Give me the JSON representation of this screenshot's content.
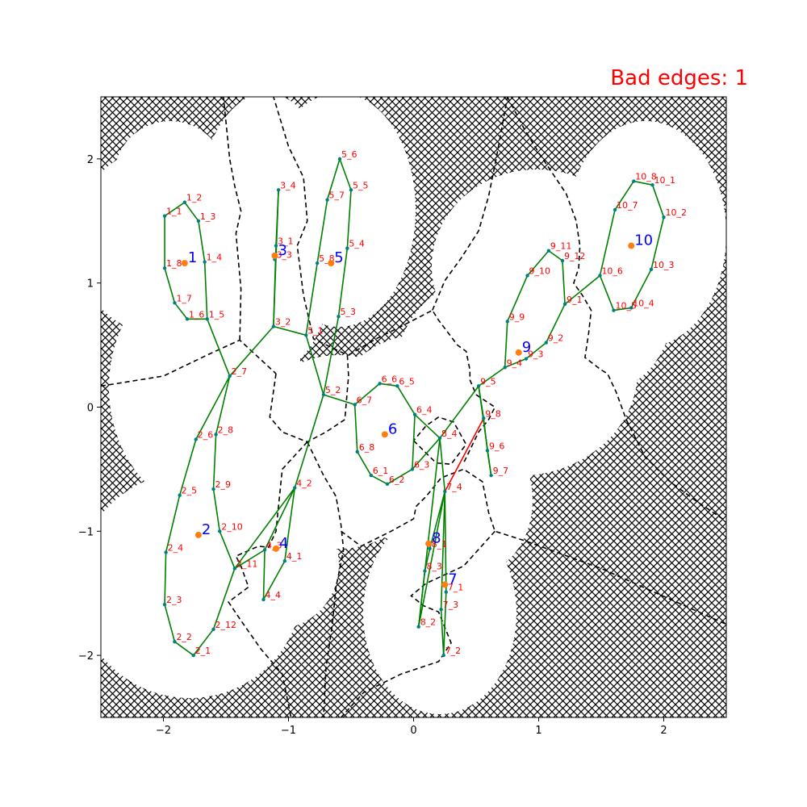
{
  "title": "Bad edges: 1",
  "colors": {
    "title": "#ff0000",
    "good_edge": "#008000",
    "bad_edge": "#ff0000",
    "boundary": "#000000",
    "obstacle_hatch": "#000000",
    "free_space": "#ffffff",
    "node_dot": "#008080",
    "node_label": "#ff0000",
    "centroid_dot": "#ff7f0e",
    "centroid_label": "#0000ff"
  },
  "chart_data": {
    "type": "scatter",
    "title": "Bad edges: 1",
    "xlim": [
      -2.5,
      2.5
    ],
    "ylim": [
      -2.5,
      2.5
    ],
    "xticks": [
      -2,
      -1,
      0,
      1,
      2
    ],
    "yticks": [
      -2,
      -1,
      0,
      1,
      2
    ],
    "xtick_labels": [
      "−2",
      "−1",
      "0",
      "1",
      "2"
    ],
    "ytick_labels": [
      "−2",
      "−1",
      "0",
      "1",
      "2"
    ],
    "grid": false,
    "legend": "none",
    "clusters": [
      {
        "label": "1",
        "centroid": [
          -1.83,
          1.16
        ]
      },
      {
        "label": "2",
        "centroid": [
          -1.72,
          -1.03
        ]
      },
      {
        "label": "3",
        "centroid": [
          -1.11,
          1.22
        ]
      },
      {
        "label": "4",
        "centroid": [
          -1.1,
          -1.14
        ]
      },
      {
        "label": "5",
        "centroid": [
          -0.66,
          1.16
        ]
      },
      {
        "label": "6",
        "centroid": [
          -0.23,
          -0.22
        ]
      },
      {
        "label": "7",
        "centroid": [
          0.25,
          -1.43
        ]
      },
      {
        "label": "8",
        "centroid": [
          0.12,
          -1.1
        ]
      },
      {
        "label": "9",
        "centroid": [
          0.84,
          0.44
        ]
      },
      {
        "label": "10",
        "centroid": [
          1.74,
          1.3
        ]
      }
    ],
    "nodes": [
      {
        "label": "1_1",
        "x": -1.99,
        "y": 1.54
      },
      {
        "label": "1_2",
        "x": -1.83,
        "y": 1.65
      },
      {
        "label": "1_3",
        "x": -1.72,
        "y": 1.5
      },
      {
        "label": "1_4",
        "x": -1.67,
        "y": 1.17
      },
      {
        "label": "1_5",
        "x": -1.65,
        "y": 0.71
      },
      {
        "label": "1_6",
        "x": -1.81,
        "y": 0.71
      },
      {
        "label": "1_7",
        "x": -1.91,
        "y": 0.84
      },
      {
        "label": "1_8",
        "x": -1.99,
        "y": 1.12
      },
      {
        "label": "2_1",
        "x": -1.76,
        "y": -2.0
      },
      {
        "label": "2_2",
        "x": -1.91,
        "y": -1.89
      },
      {
        "label": "2_3",
        "x": -1.99,
        "y": -1.59
      },
      {
        "label": "2_4",
        "x": -1.98,
        "y": -1.17
      },
      {
        "label": "2_5",
        "x": -1.87,
        "y": -0.71
      },
      {
        "label": "2_6",
        "x": -1.74,
        "y": -0.26
      },
      {
        "label": "2_7",
        "x": -1.47,
        "y": 0.25
      },
      {
        "label": "2_8",
        "x": -1.58,
        "y": -0.22
      },
      {
        "label": "2_9",
        "x": -1.6,
        "y": -0.66
      },
      {
        "label": "2_10",
        "x": -1.55,
        "y": -1.0
      },
      {
        "label": "2_11",
        "x": -1.43,
        "y": -1.3
      },
      {
        "label": "2_12",
        "x": -1.6,
        "y": -1.79
      },
      {
        "label": "3_1",
        "x": -1.1,
        "y": 1.3
      },
      {
        "label": "3_2",
        "x": -1.12,
        "y": 0.65
      },
      {
        "label": "3_3",
        "x": -1.11,
        "y": 1.19
      },
      {
        "label": "3_4",
        "x": -1.08,
        "y": 1.75
      },
      {
        "label": "4_1",
        "x": -1.03,
        "y": -1.24
      },
      {
        "label": "4_2",
        "x": -0.95,
        "y": -0.65
      },
      {
        "label": "4_3",
        "x": -1.19,
        "y": -1.15
      },
      {
        "label": "4_4",
        "x": -1.2,
        "y": -1.55
      },
      {
        "label": "5_1",
        "x": -0.86,
        "y": 0.58
      },
      {
        "label": "5_2",
        "x": -0.72,
        "y": 0.1
      },
      {
        "label": "5_3",
        "x": -0.6,
        "y": 0.73
      },
      {
        "label": "5_4",
        "x": -0.53,
        "y": 1.28
      },
      {
        "label": "5_5",
        "x": -0.5,
        "y": 1.75
      },
      {
        "label": "5_6",
        "x": -0.59,
        "y": 2.0
      },
      {
        "label": "5_7",
        "x": -0.69,
        "y": 1.67
      },
      {
        "label": "5_8",
        "x": -0.77,
        "y": 1.16
      },
      {
        "label": "6_1",
        "x": -0.34,
        "y": -0.55
      },
      {
        "label": "6_2",
        "x": -0.21,
        "y": -0.62
      },
      {
        "label": "6_3",
        "x": -0.01,
        "y": -0.5
      },
      {
        "label": "6_4",
        "x": 0.01,
        "y": -0.06
      },
      {
        "label": "6_5",
        "x": -0.13,
        "y": 0.17
      },
      {
        "label": "6_6",
        "x": -0.27,
        "y": 0.19
      },
      {
        "label": "6_7",
        "x": -0.47,
        "y": 0.02
      },
      {
        "label": "6_8",
        "x": -0.45,
        "y": -0.36
      },
      {
        "label": "7_1",
        "x": 0.26,
        "y": -1.49
      },
      {
        "label": "7_2",
        "x": 0.24,
        "y": -2.0
      },
      {
        "label": "7_3",
        "x": 0.22,
        "y": -1.63
      },
      {
        "label": "7_4",
        "x": 0.25,
        "y": -0.68
      },
      {
        "label": "8_1",
        "x": 0.13,
        "y": -1.14
      },
      {
        "label": "8_2",
        "x": 0.04,
        "y": -1.77
      },
      {
        "label": "8_3",
        "x": 0.09,
        "y": -1.32
      },
      {
        "label": "8_4",
        "x": 0.21,
        "y": -0.25
      },
      {
        "label": "9_1",
        "x": 1.21,
        "y": 0.83
      },
      {
        "label": "9_2",
        "x": 1.06,
        "y": 0.52
      },
      {
        "label": "9_3",
        "x": 0.9,
        "y": 0.39
      },
      {
        "label": "9_4",
        "x": 0.73,
        "y": 0.32
      },
      {
        "label": "9_5",
        "x": 0.52,
        "y": 0.17
      },
      {
        "label": "9_6",
        "x": 0.59,
        "y": -0.35
      },
      {
        "label": "9_7",
        "x": 0.62,
        "y": -0.55
      },
      {
        "label": "9_8",
        "x": 0.56,
        "y": -0.09
      },
      {
        "label": "9_9",
        "x": 0.75,
        "y": 0.69
      },
      {
        "label": "9_10",
        "x": 0.91,
        "y": 1.06
      },
      {
        "label": "9_11",
        "x": 1.08,
        "y": 1.26
      },
      {
        "label": "9_12",
        "x": 1.19,
        "y": 1.18
      },
      {
        "label": "10_1",
        "x": 1.91,
        "y": 1.79
      },
      {
        "label": "10_2",
        "x": 2.0,
        "y": 1.53
      },
      {
        "label": "10_3",
        "x": 1.9,
        "y": 1.11
      },
      {
        "label": "10_4",
        "x": 1.74,
        "y": 0.8
      },
      {
        "label": "10_5",
        "x": 1.6,
        "y": 0.78
      },
      {
        "label": "10_6",
        "x": 1.49,
        "y": 1.06
      },
      {
        "label": "10_7",
        "x": 1.61,
        "y": 1.59
      },
      {
        "label": "10_8",
        "x": 1.76,
        "y": 1.82
      }
    ],
    "green_edges": [
      [
        "1_1",
        "1_2"
      ],
      [
        "1_2",
        "1_3"
      ],
      [
        "1_3",
        "1_4"
      ],
      [
        "1_4",
        "1_5"
      ],
      [
        "1_5",
        "1_6"
      ],
      [
        "1_6",
        "1_7"
      ],
      [
        "1_7",
        "1_8"
      ],
      [
        "1_8",
        "1_1"
      ],
      [
        "1_5",
        "2_7"
      ],
      [
        "2_7",
        "2_6"
      ],
      [
        "2_6",
        "2_5"
      ],
      [
        "2_5",
        "2_4"
      ],
      [
        "2_4",
        "2_3"
      ],
      [
        "2_3",
        "2_2"
      ],
      [
        "2_2",
        "2_1"
      ],
      [
        "2_1",
        "2_12"
      ],
      [
        "2_12",
        "2_11"
      ],
      [
        "2_11",
        "2_10"
      ],
      [
        "2_10",
        "2_9"
      ],
      [
        "2_9",
        "2_8"
      ],
      [
        "2_8",
        "2_7"
      ],
      [
        "2_7",
        "3_2"
      ],
      [
        "2_11",
        "4_3"
      ],
      [
        "2_11",
        "4_2"
      ],
      [
        "3_2",
        "3_4"
      ],
      [
        "3_4",
        "3_1"
      ],
      [
        "3_1",
        "3_2"
      ],
      [
        "3_2",
        "5_1"
      ],
      [
        "4_3",
        "4_4"
      ],
      [
        "4_4",
        "4_1"
      ],
      [
        "4_1",
        "4_2"
      ],
      [
        "4_2",
        "4_3"
      ],
      [
        "4_2",
        "5_2"
      ],
      [
        "5_1",
        "5_8"
      ],
      [
        "5_8",
        "5_7"
      ],
      [
        "5_7",
        "5_6"
      ],
      [
        "5_6",
        "5_5"
      ],
      [
        "5_5",
        "5_4"
      ],
      [
        "5_4",
        "5_3"
      ],
      [
        "5_3",
        "5_2"
      ],
      [
        "5_2",
        "5_1"
      ],
      [
        "5_2",
        "6_7"
      ],
      [
        "6_7",
        "6_6"
      ],
      [
        "6_6",
        "6_5"
      ],
      [
        "6_5",
        "6_4"
      ],
      [
        "6_4",
        "6_3"
      ],
      [
        "6_3",
        "6_2"
      ],
      [
        "6_2",
        "6_1"
      ],
      [
        "6_1",
        "6_8"
      ],
      [
        "6_8",
        "6_7"
      ],
      [
        "6_3",
        "8_4"
      ],
      [
        "6_4",
        "8_4"
      ],
      [
        "8_4",
        "9_5"
      ],
      [
        "8_4",
        "8_2"
      ],
      [
        "8_4",
        "7_4"
      ],
      [
        "7_4",
        "7_1"
      ],
      [
        "7_1",
        "7_2"
      ],
      [
        "7_2",
        "7_3"
      ],
      [
        "7_3",
        "7_4"
      ],
      [
        "7_4",
        "8_2"
      ],
      [
        "8_2",
        "8_3"
      ],
      [
        "8_3",
        "8_1"
      ],
      [
        "8_1",
        "7_4"
      ],
      [
        "9_5",
        "9_4"
      ],
      [
        "9_4",
        "9_3"
      ],
      [
        "9_3",
        "9_2"
      ],
      [
        "9_2",
        "9_1"
      ],
      [
        "9_1",
        "9_12"
      ],
      [
        "9_12",
        "9_11"
      ],
      [
        "9_11",
        "9_10"
      ],
      [
        "9_10",
        "9_9"
      ],
      [
        "9_9",
        "9_4"
      ],
      [
        "9_5",
        "9_8"
      ],
      [
        "9_8",
        "9_6"
      ],
      [
        "9_6",
        "9_7"
      ],
      [
        "9_7",
        "9_5"
      ],
      [
        "9_1",
        "10_6"
      ],
      [
        "10_6",
        "10_7"
      ],
      [
        "10_7",
        "10_8"
      ],
      [
        "10_8",
        "10_1"
      ],
      [
        "10_1",
        "10_2"
      ],
      [
        "10_2",
        "10_3"
      ],
      [
        "10_3",
        "10_4"
      ],
      [
        "10_4",
        "10_5"
      ],
      [
        "10_5",
        "10_6"
      ]
    ],
    "red_edges": [
      [
        "7_4",
        "9_8"
      ]
    ],
    "boundaries": [
      [
        [
          -2.5,
          0.17
        ],
        [
          -2.0,
          0.25
        ],
        [
          -1.65,
          0.42
        ],
        [
          -1.39,
          0.54
        ],
        [
          -1.1,
          0.27
        ]
      ],
      [
        [
          -1.39,
          0.54
        ],
        [
          -1.38,
          0.95
        ],
        [
          -1.42,
          1.4
        ],
        [
          -1.38,
          1.58
        ],
        [
          -1.43,
          1.78
        ],
        [
          -1.47,
          2.0
        ],
        [
          -1.52,
          2.5
        ]
      ],
      [
        [
          -1.1,
          0.27
        ],
        [
          -1.15,
          -0.08
        ],
        [
          -1.05,
          -0.2
        ],
        [
          -0.85,
          -0.28
        ],
        [
          -0.7,
          -0.2
        ],
        [
          -0.55,
          -0.1
        ],
        [
          -0.52,
          0.25
        ],
        [
          -0.53,
          0.42
        ],
        [
          -0.8,
          0.55
        ],
        [
          -0.88,
          0.9
        ],
        [
          -0.93,
          1.3
        ],
        [
          -0.85,
          1.5
        ],
        [
          -0.88,
          1.85
        ],
        [
          -1.0,
          2.1
        ],
        [
          -1.12,
          2.5
        ]
      ],
      [
        [
          -0.85,
          -0.28
        ],
        [
          -1.05,
          -0.5
        ],
        [
          -1.08,
          -0.8
        ],
        [
          -1.1,
          -1.0
        ],
        [
          -1.16,
          -1.13
        ],
        [
          -1.24,
          -1.12
        ],
        [
          -1.42,
          -1.2
        ],
        [
          -1.38,
          -1.28
        ],
        [
          -1.32,
          -1.45
        ],
        [
          -1.48,
          -1.57
        ],
        [
          -1.38,
          -1.72
        ],
        [
          -1.22,
          -1.95
        ],
        [
          -1.05,
          -2.15
        ],
        [
          -0.98,
          -2.5
        ]
      ],
      [
        [
          -0.85,
          -0.28
        ],
        [
          -0.72,
          -0.55
        ],
        [
          -0.62,
          -0.72
        ],
        [
          -0.58,
          -0.95
        ],
        [
          -0.56,
          -1.15
        ],
        [
          -0.62,
          -1.45
        ],
        [
          -0.65,
          -1.75
        ],
        [
          -0.7,
          -2.1
        ],
        [
          -0.72,
          -2.5
        ]
      ],
      [
        [
          -0.58,
          -1.0
        ],
        [
          -0.42,
          -1.12
        ],
        [
          -0.18,
          -1.0
        ],
        [
          0.0,
          -0.9
        ],
        [
          0.02,
          -0.8
        ],
        [
          0.1,
          -0.72
        ],
        [
          0.22,
          -0.57
        ],
        [
          0.4,
          -0.5
        ],
        [
          0.55,
          -0.6
        ],
        [
          0.6,
          -0.85
        ],
        [
          0.65,
          -1.0
        ],
        [
          0.9,
          -1.08
        ],
        [
          1.5,
          -1.3
        ],
        [
          2.5,
          -1.75
        ]
      ],
      [
        [
          0.0,
          -0.27
        ],
        [
          0.18,
          -0.45
        ],
        [
          0.3,
          -0.46
        ],
        [
          0.42,
          -0.3
        ],
        [
          0.32,
          -0.12
        ],
        [
          0.2,
          -0.08
        ],
        [
          0.1,
          -0.15
        ],
        [
          0.0,
          -0.27
        ]
      ],
      [
        [
          0.65,
          -1.0
        ],
        [
          0.4,
          -1.28
        ],
        [
          0.1,
          -1.42
        ],
        [
          -0.02,
          -1.52
        ],
        [
          0.08,
          -1.6
        ],
        [
          0.2,
          -1.65
        ],
        [
          0.3,
          -1.9
        ],
        [
          0.2,
          -2.05
        ],
        [
          -0.1,
          -2.15
        ],
        [
          -0.4,
          -2.3
        ],
        [
          -0.58,
          -2.5
        ]
      ],
      [
        [
          -0.52,
          0.42
        ],
        [
          -0.3,
          0.55
        ],
        [
          -0.1,
          0.65
        ],
        [
          0.15,
          0.78
        ],
        [
          0.2,
          0.7
        ],
        [
          0.35,
          0.5
        ],
        [
          0.42,
          0.45
        ],
        [
          0.45,
          0.3
        ],
        [
          0.45,
          0.22
        ],
        [
          0.5,
          0.1
        ],
        [
          0.65,
          0.0
        ],
        [
          0.6,
          -0.1
        ],
        [
          0.52,
          -0.2
        ],
        [
          0.4,
          -0.45
        ]
      ],
      [
        [
          0.15,
          0.78
        ],
        [
          0.25,
          1.02
        ],
        [
          0.38,
          1.2
        ],
        [
          0.52,
          1.42
        ],
        [
          0.6,
          1.7
        ],
        [
          0.66,
          2.0
        ],
        [
          0.7,
          2.22
        ],
        [
          0.75,
          2.5
        ]
      ],
      [
        [
          0.75,
          2.5
        ],
        [
          0.88,
          2.25
        ],
        [
          1.0,
          2.05
        ],
        [
          1.1,
          1.9
        ],
        [
          1.22,
          1.72
        ],
        [
          1.3,
          1.5
        ],
        [
          1.33,
          1.3
        ],
        [
          1.32,
          1.12
        ],
        [
          1.28,
          1.0
        ],
        [
          1.35,
          0.9
        ],
        [
          1.42,
          0.78
        ],
        [
          1.4,
          0.6
        ],
        [
          1.37,
          0.4
        ],
        [
          1.5,
          0.3
        ],
        [
          1.55,
          0.27
        ],
        [
          1.62,
          0.12
        ],
        [
          1.7,
          -0.1
        ],
        [
          1.85,
          -0.4
        ],
        [
          2.05,
          -0.6
        ],
        [
          2.25,
          -0.75
        ],
        [
          2.5,
          -0.92
        ]
      ]
    ]
  }
}
